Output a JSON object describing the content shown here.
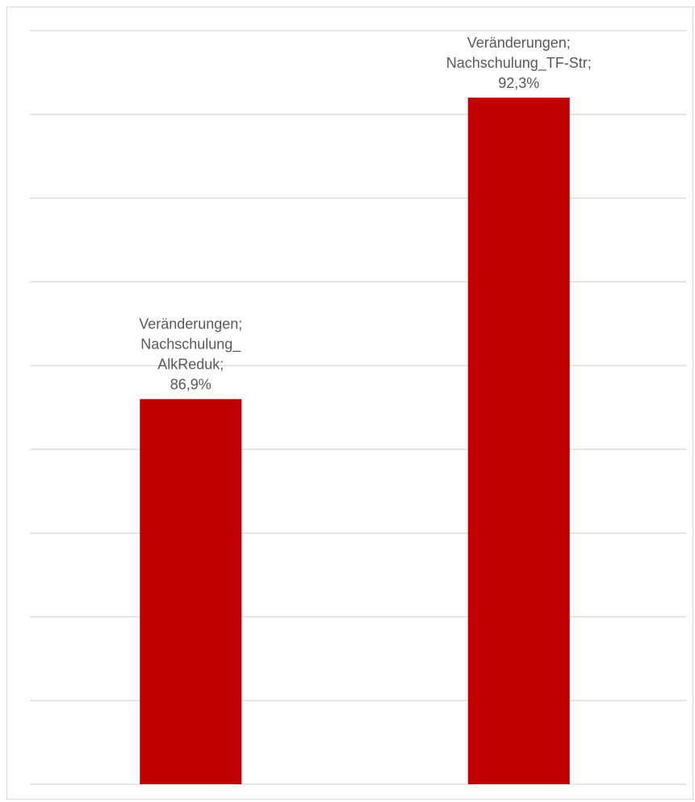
{
  "chart_data": {
    "type": "bar",
    "categories": [
      "Nachschulung_AlkReduk",
      "Nachschulung_TF-Str"
    ],
    "series": [
      {
        "name": "Veränderungen",
        "values": [
          86.9,
          92.3
        ]
      }
    ],
    "data_labels": [
      [
        "Veränderungen;",
        "Nachschulung_",
        "AlkReduk;",
        "86,9%"
      ],
      [
        "Veränderungen;",
        "Nachschulung_TF-Str;",
        "92,3%"
      ]
    ],
    "ylim": [
      80,
      93.5
    ],
    "gridline_step": 1.5,
    "grid": true,
    "bar_color": "#c00000",
    "title": "",
    "xlabel": "",
    "ylabel": "",
    "legend": "none"
  }
}
